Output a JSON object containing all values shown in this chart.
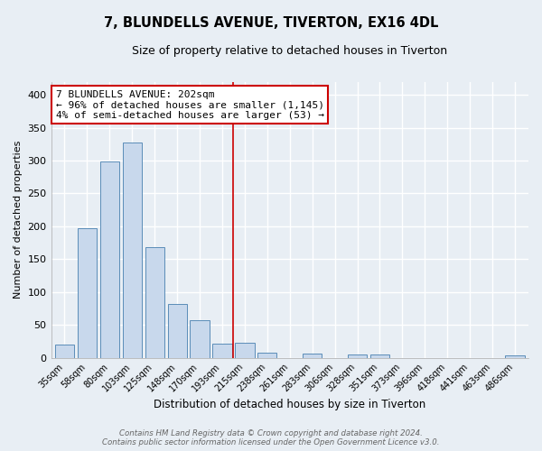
{
  "title": "7, BLUNDELLS AVENUE, TIVERTON, EX16 4DL",
  "subtitle": "Size of property relative to detached houses in Tiverton",
  "xlabel": "Distribution of detached houses by size in Tiverton",
  "ylabel": "Number of detached properties",
  "bar_labels": [
    "35sqm",
    "58sqm",
    "80sqm",
    "103sqm",
    "125sqm",
    "148sqm",
    "170sqm",
    "193sqm",
    "215sqm",
    "238sqm",
    "261sqm",
    "283sqm",
    "306sqm",
    "328sqm",
    "351sqm",
    "373sqm",
    "396sqm",
    "418sqm",
    "441sqm",
    "463sqm",
    "486sqm"
  ],
  "bar_values": [
    20,
    197,
    299,
    327,
    168,
    82,
    57,
    21,
    23,
    8,
    0,
    6,
    0,
    5,
    5,
    0,
    0,
    0,
    0,
    0,
    3
  ],
  "bar_color": "#c8d8ec",
  "bar_edge_color": "#5b8db8",
  "ylim": [
    0,
    420
  ],
  "yticks": [
    0,
    50,
    100,
    150,
    200,
    250,
    300,
    350,
    400
  ],
  "vline_x": 7.5,
  "vline_color": "#cc0000",
  "annotation_title": "7 BLUNDELLS AVENUE: 202sqm",
  "annotation_line1": "← 96% of detached houses are smaller (1,145)",
  "annotation_line2": "4% of semi-detached houses are larger (53) →",
  "footer_line1": "Contains HM Land Registry data © Crown copyright and database right 2024.",
  "footer_line2": "Contains public sector information licensed under the Open Government Licence v3.0.",
  "background_color": "#e8eef4",
  "grid_color": "#ffffff"
}
